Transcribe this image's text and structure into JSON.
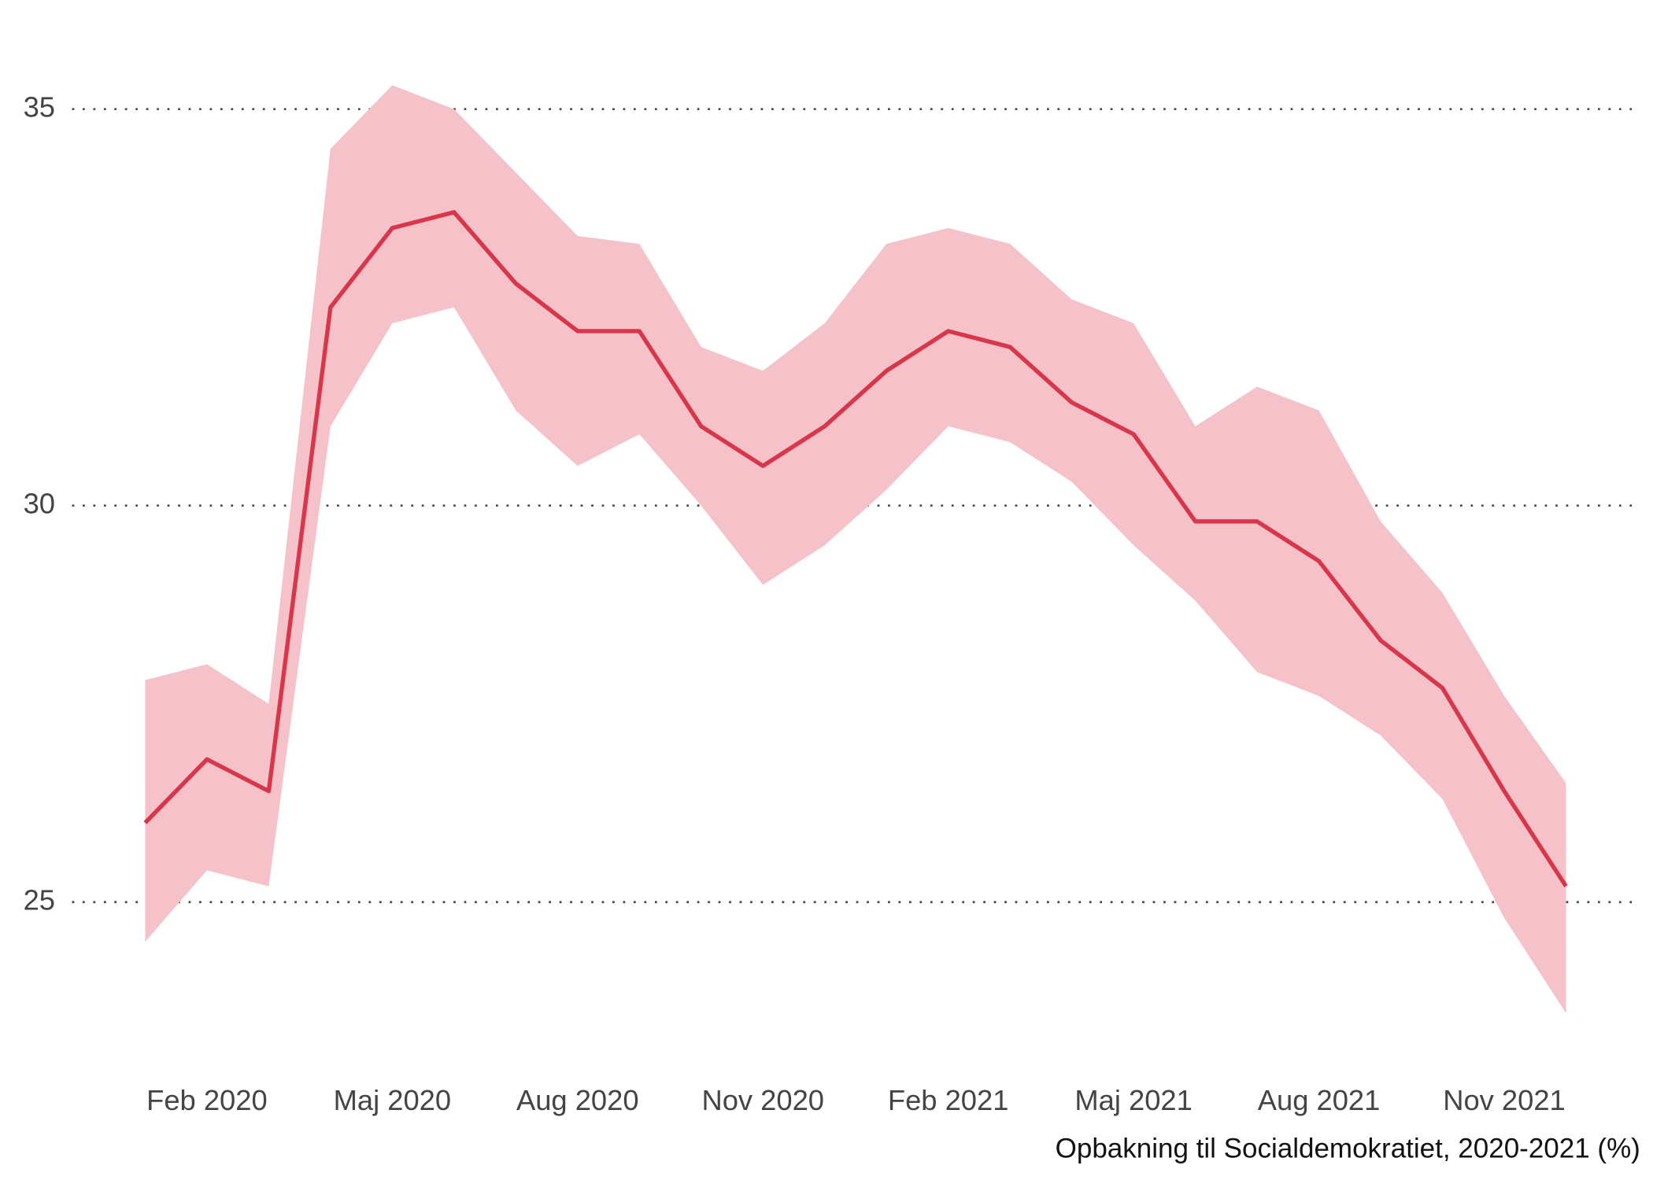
{
  "chart_data": {
    "type": "line",
    "caption": "Opbakning til Socialdemokratiet, 2020-2021 (%)",
    "x": [
      "2020-01",
      "2020-02",
      "2020-03",
      "2020-04",
      "2020-05",
      "2020-06",
      "2020-07",
      "2020-08",
      "2020-09",
      "2020-10",
      "2020-11",
      "2020-12",
      "2021-01",
      "2021-02",
      "2021-03",
      "2021-04",
      "2021-05",
      "2021-06",
      "2021-07",
      "2021-08",
      "2021-09",
      "2021-10",
      "2021-11",
      "2021-12"
    ],
    "series": [
      {
        "color": "#d9364b",
        "values": [
          26.0,
          26.8,
          26.4,
          32.5,
          33.5,
          33.7,
          32.8,
          32.2,
          32.2,
          31.0,
          30.5,
          31.0,
          31.7,
          32.2,
          32.0,
          31.3,
          30.9,
          29.8,
          29.8,
          29.3,
          28.3,
          27.7,
          26.4,
          25.2
        ]
      }
    ],
    "band": {
      "color": "#f4c2c8",
      "upper": [
        27.8,
        28.0,
        27.5,
        34.5,
        35.3,
        35.0,
        34.2,
        33.4,
        33.3,
        32.0,
        31.7,
        32.3,
        33.3,
        33.5,
        33.3,
        32.6,
        32.3,
        31.0,
        31.5,
        31.2,
        29.8,
        28.9,
        27.6,
        26.5
      ],
      "lower": [
        24.5,
        25.4,
        25.2,
        31.0,
        32.3,
        32.5,
        31.2,
        30.5,
        30.9,
        30.0,
        29.0,
        29.5,
        30.2,
        31.0,
        30.8,
        30.3,
        29.5,
        28.8,
        27.9,
        27.6,
        27.1,
        26.3,
        24.8,
        23.6
      ]
    },
    "xticks": [
      {
        "value": "2020-02",
        "label": "Feb 2020"
      },
      {
        "value": "2020-05",
        "label": "Maj 2020"
      },
      {
        "value": "2020-08",
        "label": "Aug 2020"
      },
      {
        "value": "2020-11",
        "label": "Nov 2020"
      },
      {
        "value": "2021-02",
        "label": "Feb 2021"
      },
      {
        "value": "2021-05",
        "label": "Maj 2021"
      },
      {
        "value": "2021-08",
        "label": "Aug 2021"
      },
      {
        "value": "2021-11",
        "label": "Nov 2021"
      }
    ],
    "ylim": [
      23.1,
      36.2
    ],
    "yticks": [
      25,
      30,
      35
    ],
    "grid": true
  }
}
